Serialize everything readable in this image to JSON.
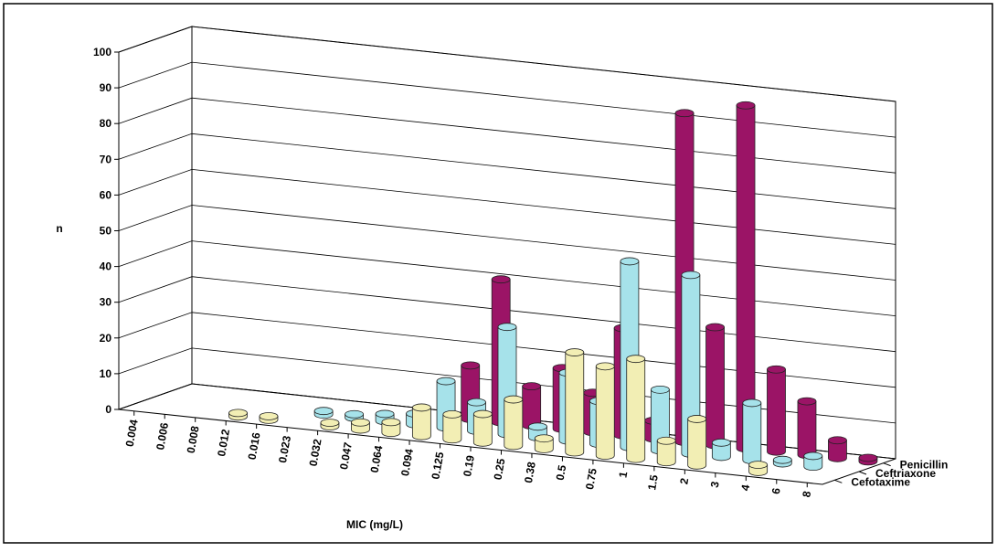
{
  "chart_data": {
    "type": "bar3d",
    "x_label": "MIC (mg/L)",
    "y_label": "n",
    "categories": [
      "0.004",
      "0.006",
      "0.008",
      "0.012",
      "0.016",
      "0.023",
      "0.032",
      "0.047",
      "0.064",
      "0.094",
      "0.125",
      "0.19",
      "0.25",
      "0.38",
      "0.5",
      "0.75",
      "1",
      "1.5",
      "2",
      "3",
      "4",
      "6",
      "8"
    ],
    "ylim": [
      0,
      100
    ],
    "yticks": [
      0,
      10,
      20,
      30,
      40,
      50,
      60,
      70,
      80,
      90,
      100
    ],
    "grid": true,
    "series": [
      {
        "name": "Cefotaxime",
        "color": "#f2eeb4",
        "values": [
          null,
          null,
          null,
          1,
          1,
          null,
          1,
          2,
          3,
          8,
          7,
          8,
          13,
          3,
          28,
          25,
          28,
          6,
          13,
          null,
          2,
          null,
          null
        ]
      },
      {
        "name": "Ceftriaxone",
        "color": "#a6e2ea",
        "values": [
          null,
          null,
          null,
          null,
          null,
          1,
          1,
          2,
          3,
          13,
          8,
          30,
          3,
          19,
          12,
          52,
          17,
          50,
          4,
          16,
          1,
          3,
          null
        ]
      },
      {
        "name": "Penicillin",
        "color": "#9b1466",
        "values": [
          null,
          null,
          null,
          null,
          null,
          null,
          null,
          null,
          null,
          15,
          40,
          11,
          17,
          11,
          30,
          5,
          92,
          33,
          96,
          23,
          15,
          5,
          1
        ]
      }
    ]
  }
}
